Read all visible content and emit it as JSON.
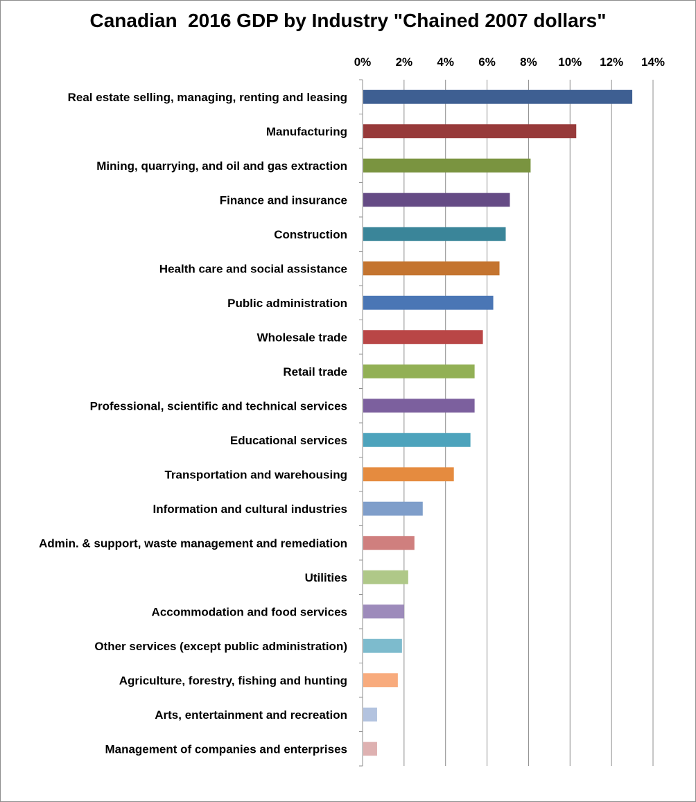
{
  "chart_data": {
    "type": "bar",
    "orientation": "horizontal",
    "title": "Canadian  2016 GDP by Industry \"Chained 2007 dollars\"",
    "xlabel": "",
    "ylabel": "",
    "xlim": [
      0,
      14
    ],
    "x_ticks": [
      "0%",
      "2%",
      "4%",
      "6%",
      "8%",
      "10%",
      "12%",
      "14%"
    ],
    "x_axis_position": "top",
    "grid": "vertical",
    "legend": "none",
    "categories": [
      "Real estate selling, managing, renting and leasing",
      "Manufacturing",
      "Mining, quarrying, and oil and gas extraction",
      "Finance and insurance",
      "Construction",
      "Health care and social assistance",
      "Public administration",
      "Wholesale trade",
      "Retail trade",
      "Professional, scientific and technical services",
      "Educational services",
      "Transportation and warehousing",
      "Information and cultural industries",
      "Admin. & support, waste management and remediation",
      "Utilities",
      "Accommodation and food services",
      "Other services (except public administration)",
      "Agriculture, forestry, fishing and hunting",
      "Arts, entertainment and recreation",
      "Management of companies and enterprises"
    ],
    "values": [
      13.0,
      10.3,
      8.1,
      7.1,
      6.9,
      6.6,
      6.3,
      5.8,
      5.4,
      5.4,
      5.2,
      4.4,
      2.9,
      2.5,
      2.2,
      2.0,
      1.9,
      1.7,
      0.7,
      0.7
    ],
    "colors": [
      "#3E5F92",
      "#973A3A",
      "#7A9440",
      "#654B85",
      "#3A8599",
      "#C4742F",
      "#4A76B5",
      "#B94646",
      "#92B055",
      "#7C609E",
      "#4DA3BC",
      "#E58B3F",
      "#7F9ECA",
      "#CF7F7E",
      "#AFC888",
      "#9D8BBB",
      "#7DBBCD",
      "#F8AB7D",
      "#B3C3DF",
      "#DEB1B1"
    ]
  }
}
